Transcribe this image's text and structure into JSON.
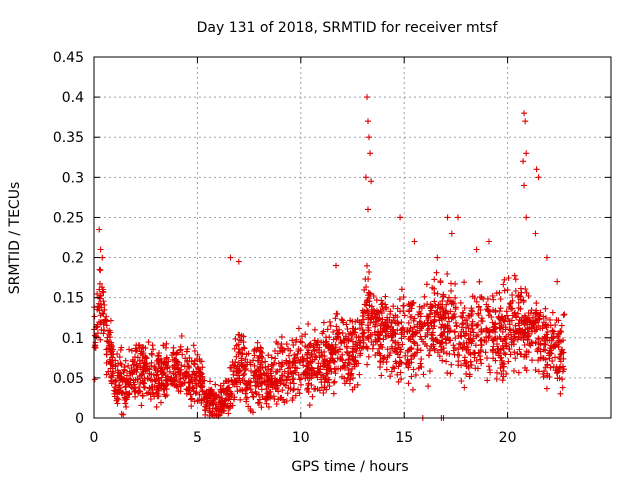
{
  "chart_data": {
    "type": "scatter",
    "title": "Day 131 of 2018, SRMTID for receiver mtsf",
    "xlabel": "GPS time / hours",
    "ylabel": "SRMTID / TECUs",
    "xlim": [
      0,
      25
    ],
    "ylim": [
      0,
      0.45
    ],
    "x_ticks": [
      0,
      5,
      10,
      15,
      20
    ],
    "x_tick_labels": [
      "0",
      "5",
      "10",
      "15",
      "20"
    ],
    "y_ticks": [
      0,
      0.05,
      0.1,
      0.15,
      0.2,
      0.25,
      0.3,
      0.35,
      0.4,
      0.45
    ],
    "y_tick_labels": [
      "0",
      "0.05",
      "0.1",
      "0.15",
      "0.2",
      "0.25",
      "0.3",
      "0.35",
      "0.4",
      "0.45"
    ],
    "grid": true,
    "marker": "+",
    "colors": {
      "series": "#e00000",
      "grid": "#a0a0a0",
      "axis": "#000000"
    },
    "series": [
      {
        "name": "SRMTID",
        "trend": [
          [
            0.0,
            0.1
          ],
          [
            0.3,
            0.14
          ],
          [
            0.6,
            0.1
          ],
          [
            1.0,
            0.05
          ],
          [
            1.5,
            0.045
          ],
          [
            2.0,
            0.055
          ],
          [
            2.5,
            0.06
          ],
          [
            3.0,
            0.05
          ],
          [
            3.5,
            0.055
          ],
          [
            4.0,
            0.06
          ],
          [
            4.5,
            0.055
          ],
          [
            5.0,
            0.05
          ],
          [
            5.5,
            0.02
          ],
          [
            6.0,
            0.015
          ],
          [
            6.5,
            0.03
          ],
          [
            7.0,
            0.07
          ],
          [
            7.5,
            0.05
          ],
          [
            8.0,
            0.05
          ],
          [
            8.5,
            0.05
          ],
          [
            9.0,
            0.055
          ],
          [
            9.5,
            0.06
          ],
          [
            10.0,
            0.07
          ],
          [
            10.5,
            0.065
          ],
          [
            11.0,
            0.07
          ],
          [
            11.5,
            0.075
          ],
          [
            12.0,
            0.085
          ],
          [
            12.5,
            0.08
          ],
          [
            13.0,
            0.1
          ],
          [
            13.3,
            0.13
          ],
          [
            13.7,
            0.11
          ],
          [
            14.0,
            0.1
          ],
          [
            14.5,
            0.1
          ],
          [
            15.0,
            0.105
          ],
          [
            15.5,
            0.1
          ],
          [
            16.0,
            0.11
          ],
          [
            16.5,
            0.12
          ],
          [
            17.0,
            0.12
          ],
          [
            17.5,
            0.11
          ],
          [
            18.0,
            0.1
          ],
          [
            18.5,
            0.11
          ],
          [
            19.0,
            0.11
          ],
          [
            19.5,
            0.1
          ],
          [
            20.0,
            0.11
          ],
          [
            20.5,
            0.12
          ],
          [
            21.0,
            0.11
          ],
          [
            21.5,
            0.1
          ],
          [
            22.0,
            0.09
          ],
          [
            22.5,
            0.08
          ],
          [
            22.75,
            0.08
          ]
        ],
        "noise_scale": [
          [
            0.0,
            0.05
          ],
          [
            1.0,
            0.03
          ],
          [
            5.0,
            0.03
          ],
          [
            5.5,
            0.02
          ],
          [
            6.5,
            0.02
          ],
          [
            7.0,
            0.035
          ],
          [
            10.0,
            0.035
          ],
          [
            12.5,
            0.04
          ],
          [
            14.0,
            0.045
          ],
          [
            20.0,
            0.045
          ],
          [
            22.75,
            0.04
          ]
        ],
        "points_per_hour": 105,
        "peaks": [
          [
            0.25,
            0.235
          ],
          [
            0.32,
            0.21
          ],
          [
            0.4,
            0.2
          ],
          [
            6.6,
            0.2
          ],
          [
            7.0,
            0.195
          ],
          [
            11.7,
            0.19
          ],
          [
            13.2,
            0.4
          ],
          [
            13.25,
            0.37
          ],
          [
            13.3,
            0.35
          ],
          [
            13.35,
            0.33
          ],
          [
            13.15,
            0.3
          ],
          [
            13.4,
            0.295
          ],
          [
            13.25,
            0.26
          ],
          [
            14.8,
            0.25
          ],
          [
            15.5,
            0.22
          ],
          [
            16.6,
            0.2
          ],
          [
            17.1,
            0.25
          ],
          [
            17.3,
            0.23
          ],
          [
            17.6,
            0.25
          ],
          [
            18.5,
            0.21
          ],
          [
            19.1,
            0.22
          ],
          [
            20.8,
            0.38
          ],
          [
            20.85,
            0.37
          ],
          [
            20.9,
            0.33
          ],
          [
            20.75,
            0.32
          ],
          [
            20.8,
            0.29
          ],
          [
            21.4,
            0.31
          ],
          [
            21.5,
            0.3
          ],
          [
            21.35,
            0.23
          ],
          [
            20.9,
            0.25
          ],
          [
            21.9,
            0.2
          ],
          [
            22.4,
            0.17
          ]
        ],
        "zero_points": [
          [
            15.9,
            0.0
          ],
          [
            16.8,
            0.0
          ],
          [
            16.9,
            0.0
          ]
        ]
      }
    ]
  }
}
